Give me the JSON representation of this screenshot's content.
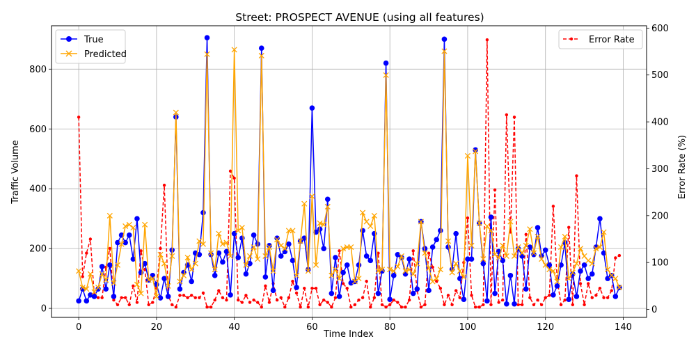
{
  "chart_data": {
    "type": "line",
    "title": "Street: PROSPECT AVENUE (using all features)",
    "xlabel": "Time Index",
    "ylabel": "Traffic Volume",
    "y2label": "Error Rate (%)",
    "xlim": [
      -7,
      146
    ],
    "ylim": [
      -30,
      945
    ],
    "y2lim": [
      -17,
      605
    ],
    "xticks": [
      "0",
      "20",
      "40",
      "60",
      "80",
      "100",
      "120",
      "140"
    ],
    "yticks": [
      "0",
      "200",
      "400",
      "600",
      "800"
    ],
    "y2ticks": [
      "0",
      "100",
      "200",
      "300",
      "400",
      "500",
      "600"
    ],
    "grid": true,
    "legend_left": "upper-left",
    "legend_right": "upper-right",
    "colors": {
      "true": "#0000ff",
      "predicted": "#ffa500",
      "error": "#ff0000"
    },
    "series": [
      {
        "name": "True",
        "values": [
          25,
          65,
          25,
          45,
          40,
          65,
          140,
          65,
          145,
          40,
          220,
          245,
          220,
          245,
          165,
          300,
          120,
          150,
          95,
          110,
          80,
          35,
          100,
          40,
          195,
          640,
          65,
          120,
          145,
          90,
          185,
          180,
          320,
          905,
          180,
          110,
          185,
          155,
          190,
          45,
          250,
          170,
          235,
          115,
          150,
          245,
          215,
          870,
          105,
          210,
          60,
          235,
          175,
          190,
          215,
          160,
          70,
          225,
          235,
          130,
          670,
          255,
          265,
          200,
          365,
          50,
          170,
          40,
          120,
          145,
          85,
          90,
          145,
          260,
          175,
          160,
          250,
          50,
          125,
          820,
          30,
          110,
          180,
          170,
          115,
          165,
          50,
          65,
          290,
          200,
          60,
          205,
          230,
          260,
          900,
          205,
          130,
          250,
          100,
          30,
          165,
          165,
          530,
          285,
          150,
          25,
          305,
          50,
          190,
          160,
          15,
          110,
          15,
          200,
          175,
          65,
          205,
          180,
          270,
          175,
          195,
          145,
          45,
          75,
          145,
          220,
          30,
          115,
          40,
          125,
          145,
          100,
          115,
          205,
          300,
          185,
          100,
          110,
          40,
          70
        ]
      },
      {
        "name": "Predicted",
        "values": [
          125,
          70,
          65,
          115,
          55,
          70,
          115,
          95,
          310,
          85,
          145,
          215,
          275,
          280,
          270,
          80,
          50,
          280,
          95,
          100,
          40,
          180,
          150,
          75,
          175,
          655,
          90,
          110,
          170,
          130,
          150,
          225,
          215,
          850,
          185,
          130,
          250,
          215,
          220,
          175,
          865,
          260,
          270,
          145,
          175,
          205,
          165,
          845,
          175,
          205,
          125,
          230,
          210,
          200,
          260,
          260,
          110,
          225,
          350,
          125,
          375,
          145,
          285,
          280,
          340,
          110,
          130,
          100,
          200,
          205,
          205,
          90,
          100,
          320,
          290,
          275,
          310,
          125,
          130,
          780,
          130,
          125,
          140,
          175,
          125,
          130,
          115,
          150,
          290,
          185,
          135,
          90,
          100,
          130,
          860,
          225,
          120,
          150,
          125,
          105,
          510,
          210,
          525,
          285,
          165,
          275,
          260,
          180,
          170,
          210,
          175,
          290,
          175,
          205,
          185,
          210,
          265,
          185,
          240,
          165,
          145,
          130,
          125,
          90,
          205,
          240,
          100,
          120,
          150,
          200,
          175,
          160,
          150,
          200,
          205,
          255,
          130,
          110,
          100,
          70
        ]
      },
      {
        "name": "Error Rate",
        "values": [
          410,
          70,
          120,
          150,
          30,
          25,
          25,
          90,
          130,
          20,
          10,
          25,
          25,
          10,
          50,
          15,
          125,
          85,
          10,
          15,
          45,
          130,
          265,
          30,
          10,
          5,
          30,
          30,
          25,
          30,
          25,
          25,
          35,
          5,
          5,
          20,
          40,
          25,
          20,
          295,
          280,
          20,
          15,
          30,
          15,
          20,
          15,
          5,
          50,
          15,
          55,
          20,
          25,
          5,
          25,
          60,
          35,
          5,
          45,
          5,
          45,
          45,
          10,
          20,
          15,
          5,
          25,
          125,
          55,
          45,
          5,
          10,
          20,
          25,
          60,
          5,
          25,
          120,
          10,
          5,
          10,
          20,
          15,
          5,
          5,
          20,
          125,
          40,
          5,
          10,
          120,
          90,
          60,
          45,
          10,
          30,
          10,
          40,
          25,
          100,
          195,
          30,
          5,
          5,
          10,
          575,
          10,
          255,
          15,
          20,
          415,
          165,
          410,
          10,
          10,
          160,
          25,
          10,
          20,
          10,
          25,
          30,
          220,
          65,
          10,
          20,
          175,
          10,
          285,
          55,
          10,
          55,
          25,
          30,
          45,
          25,
          25,
          40,
          110,
          115
        ]
      }
    ]
  }
}
